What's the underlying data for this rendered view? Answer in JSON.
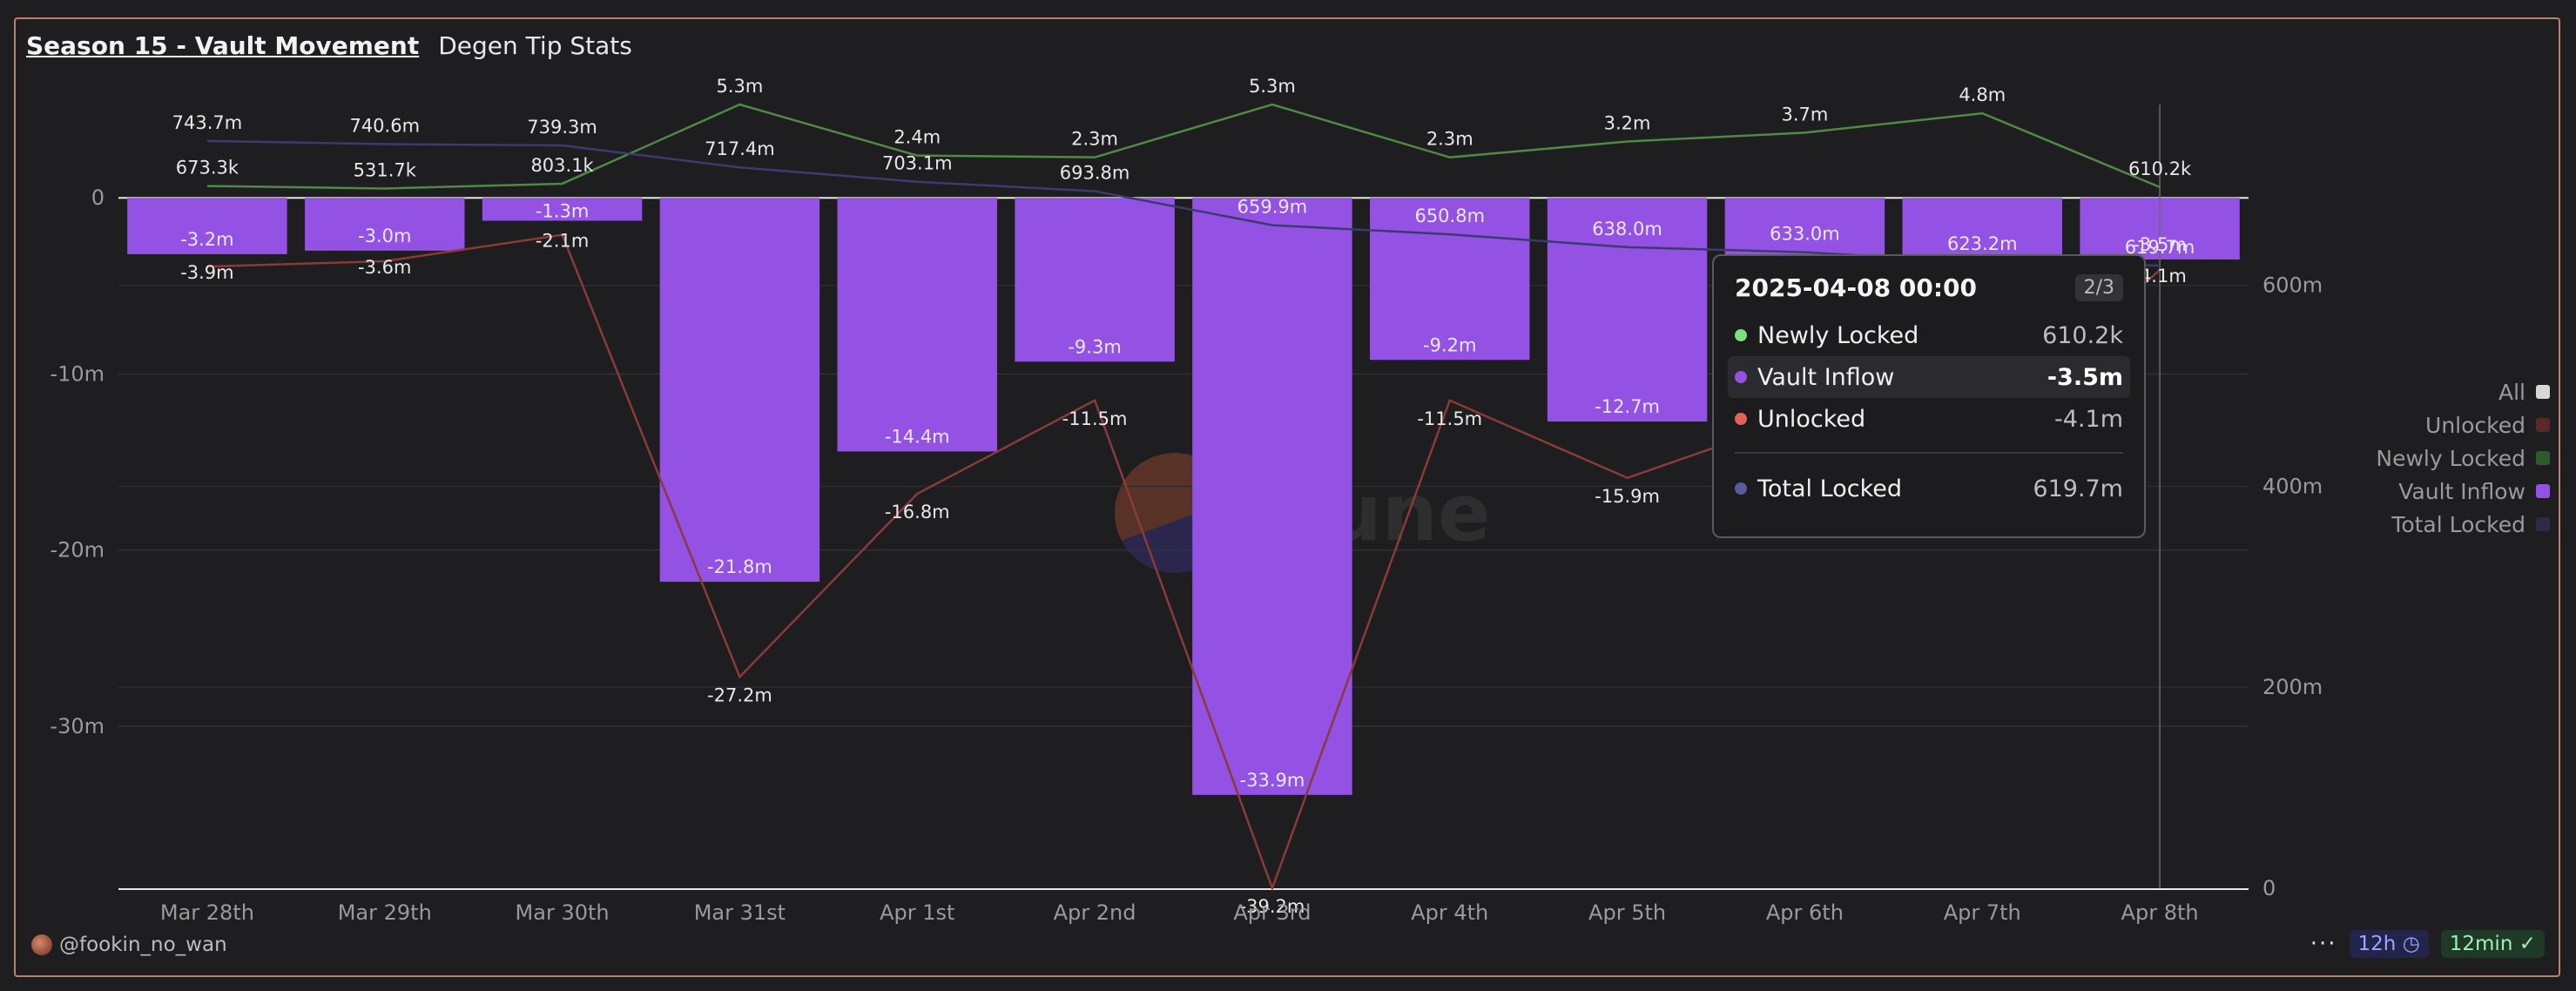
{
  "header": {
    "title": "Season 15 - Vault Movement",
    "subtitle": "Degen Tip Stats"
  },
  "colors": {
    "vault_inflow": "#9352e3",
    "unlocked": "#c0564f",
    "newly_locked": "#4f8a44",
    "total_locked": "#3c3a6e",
    "all": "#d8d8d8"
  },
  "chart_data": {
    "type": "bar",
    "categories": [
      "Mar 28th",
      "Mar 29th",
      "Mar 30th",
      "Mar 31st",
      "Apr 1st",
      "Apr 2nd",
      "Apr 3rd",
      "Apr 4th",
      "Apr 5th",
      "Apr 6th",
      "Apr 7th",
      "Apr 8th"
    ],
    "series": [
      {
        "name": "Vault Inflow",
        "kind": "bar",
        "axis": "left",
        "values": [
          -3.2,
          -3.0,
          -1.3,
          -21.8,
          -14.4,
          -9.3,
          -33.9,
          -9.2,
          -12.7,
          -10.6,
          -10.9,
          -3.5
        ],
        "labels": [
          "-3.2m",
          "-3.0m",
          "-1.3m",
          "-21.8m",
          "-14.4m",
          "-9.3m",
          "-33.9m",
          "-9.2m",
          "-12.7m",
          "",
          "",
          "-3.5m"
        ]
      },
      {
        "name": "Unlocked",
        "kind": "line",
        "axis": "left",
        "values": [
          -3.9,
          -3.6,
          -2.1,
          -27.2,
          -16.8,
          -11.5,
          -39.2,
          -11.5,
          -15.9,
          -12.4,
          -13.1,
          -4.1
        ],
        "labels": [
          "-3.9m",
          "-3.6m",
          "-2.1m",
          "-27.2m",
          "-16.8m",
          "-11.5m",
          "-39.2m",
          "-11.5m",
          "-15.9m",
          "",
          "",
          "-4.1m"
        ]
      },
      {
        "name": "Newly Locked",
        "kind": "line",
        "axis": "left",
        "values": [
          0.6733,
          0.5317,
          0.8031,
          5.3,
          2.4,
          2.3,
          5.3,
          2.3,
          3.2,
          3.7,
          4.8,
          0.6102
        ],
        "labels": [
          "673.3k",
          "531.7k",
          "803.1k",
          "5.3m",
          "2.4m",
          "2.3m",
          "5.3m",
          "2.3m",
          "3.2m",
          "3.7m",
          "4.8m",
          "610.2k"
        ]
      },
      {
        "name": "Total Locked",
        "kind": "line",
        "axis": "right",
        "values": [
          743.7,
          740.6,
          739.3,
          717.4,
          703.1,
          693.8,
          659.9,
          650.8,
          638.0,
          633.0,
          623.2,
          619.7
        ],
        "labels": [
          "743.7m",
          "740.6m",
          "739.3m",
          "717.4m",
          "703.1m",
          "693.8m",
          "659.9m",
          "650.8m",
          "638.0m",
          "633.0m",
          "623.2m",
          "619.7m"
        ]
      }
    ],
    "y_left": {
      "min": -39.2,
      "max": 5.3,
      "ticks": [
        0,
        -10,
        -20,
        -30
      ],
      "tick_labels": [
        "0",
        "-10m",
        "-20m",
        "-30m"
      ]
    },
    "y_right": {
      "min": 0,
      "max": 780,
      "ticks": [
        0,
        200,
        400,
        600
      ],
      "tick_labels": [
        "0",
        "200m",
        "400m",
        "600m"
      ]
    },
    "grid": true,
    "legend_position": "right"
  },
  "legend": [
    {
      "label": "All",
      "color": "#d8d8d8"
    },
    {
      "label": "Unlocked",
      "color": "#5a2a29"
    },
    {
      "label": "Newly Locked",
      "color": "#2f5a2b"
    },
    {
      "label": "Vault Inflow",
      "color": "#9352e3"
    },
    {
      "label": "Total Locked",
      "color": "#2c2b4a"
    }
  ],
  "tooltip": {
    "date": "2025-04-08 00:00",
    "page": "2/3",
    "rows": [
      {
        "name": "Newly Locked",
        "value": "610.2k",
        "color": "#7de07a"
      },
      {
        "name": "Vault Inflow",
        "value": "-3.5m",
        "color": "#9352e3"
      },
      {
        "name": "Unlocked",
        "value": "-4.1m",
        "color": "#e0645a"
      }
    ],
    "total": {
      "name": "Total Locked",
      "value": "619.7m",
      "color": "#5b5a9e"
    }
  },
  "watermark": "Dune",
  "footer": {
    "user": "@fookin_no_wan",
    "more": "···",
    "interval": "12h",
    "age": "12min"
  }
}
